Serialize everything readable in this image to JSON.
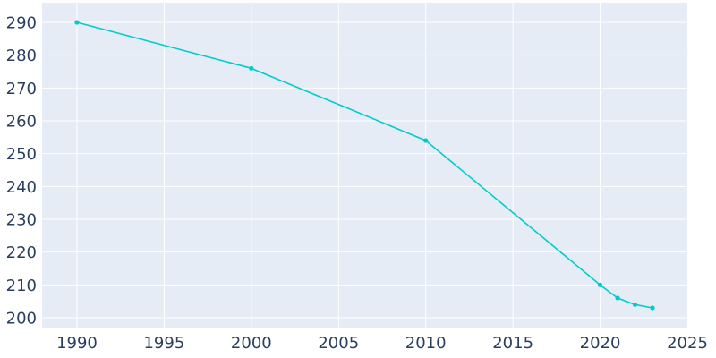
{
  "chart_data": {
    "type": "line",
    "title": "",
    "xlabel": "",
    "ylabel": "",
    "x": [
      1990,
      2000,
      2010,
      2020,
      2021,
      2022,
      2023
    ],
    "series": [
      {
        "values": [
          290,
          276,
          254,
          210,
          206,
          204,
          203
        ]
      }
    ],
    "xlim": [
      1988,
      2025
    ],
    "ylim": [
      197,
      296
    ],
    "xticks": [
      1990,
      1995,
      2000,
      2005,
      2010,
      2015,
      2020,
      2025
    ],
    "yticks": [
      200,
      210,
      220,
      230,
      240,
      250,
      260,
      270,
      280,
      290
    ],
    "xtick_labels": [
      "1990",
      "1995",
      "2000",
      "2005",
      "2010",
      "2015",
      "2020",
      "2025"
    ],
    "ytick_labels": [
      "200",
      "210",
      "220",
      "230",
      "240",
      "250",
      "260",
      "270",
      "280",
      "290"
    ],
    "grid": true,
    "legend": "none",
    "colors": {
      "background": "#ffffff",
      "plot_background": "#e5ecf6",
      "grid": "#ffffff",
      "line": "#00cccc",
      "text": "#2a3f5f"
    }
  }
}
